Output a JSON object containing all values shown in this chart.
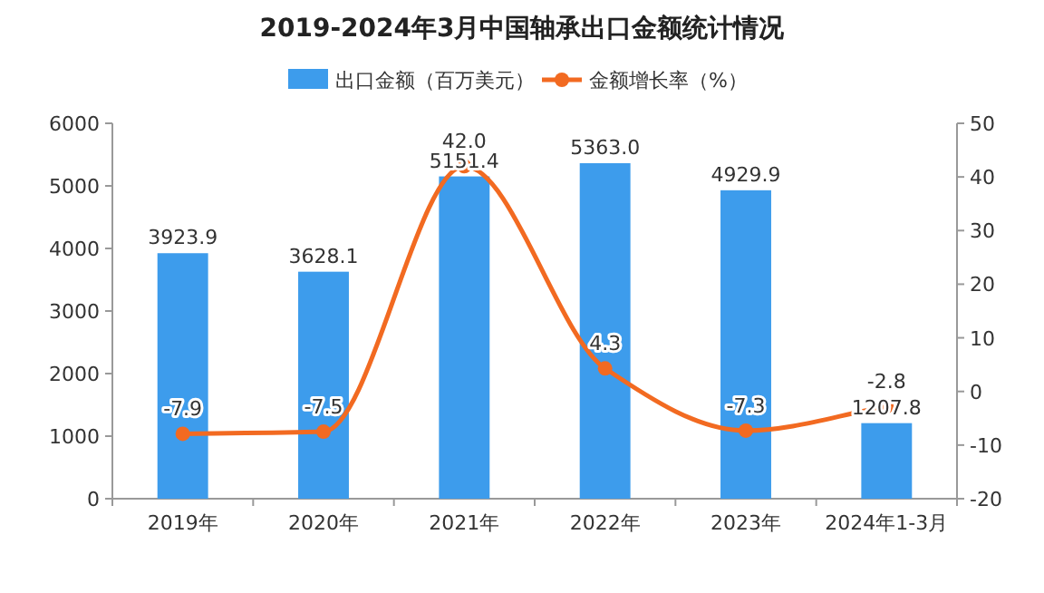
{
  "chart_data": {
    "type": "bar",
    "title": "2019-2024年3月中国轴承出口金额统计情况",
    "categories": [
      "2019年",
      "2020年",
      "2021年",
      "2022年",
      "2023年",
      "2024年1-3月"
    ],
    "series": [
      {
        "name": "出口金额（百万美元）",
        "color": "#3d9cec",
        "values": [
          3923.9,
          3628.1,
          5151.4,
          5363.0,
          4929.9,
          1207.8
        ],
        "value_labels": [
          "3923.9",
          "3628.1",
          "5151.4",
          "5363.0",
          "4929.9",
          "1207.8"
        ]
      },
      {
        "name": "金额增长率（%）",
        "type": "line",
        "axis": "y2",
        "color": "#f26a21",
        "marker": "circle",
        "values": [
          -7.9,
          -7.5,
          42.0,
          4.3,
          -7.3,
          -2.8
        ],
        "value_labels": [
          "-7.9",
          "-7.5",
          "42.0",
          "4.3",
          "-7.3",
          "-2.8"
        ]
      }
    ],
    "ylim": [
      0,
      6000
    ],
    "yticks": [
      0,
      1000,
      2000,
      3000,
      4000,
      5000,
      6000
    ],
    "y2lim": [
      -20,
      50
    ],
    "y2ticks": [
      -20,
      -10,
      0,
      10,
      20,
      30,
      40,
      50
    ],
    "legend": "top"
  }
}
